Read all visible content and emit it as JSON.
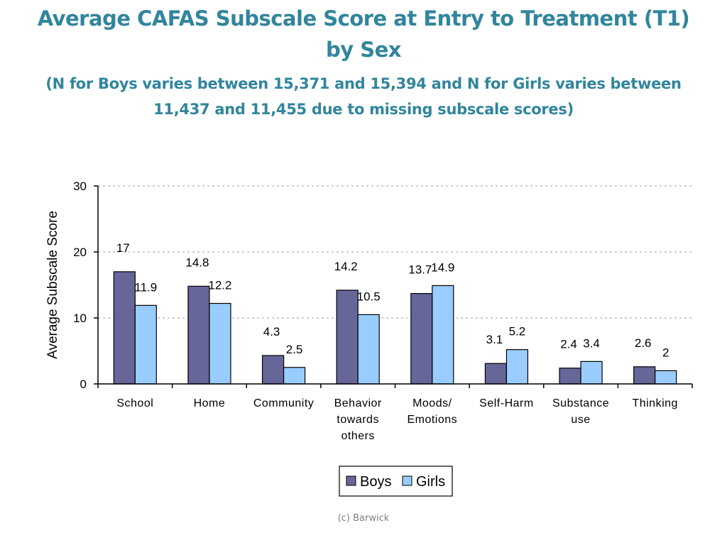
{
  "title": "Average CAFAS Subscale Score at Entry to Treatment (T1) by Sex",
  "subtitle": "(N for Boys varies between 15,371 and 15,394 and N for Girls varies between 11,437 and 11,455 due to missing subscale scores)",
  "footer": "(c) Barwick",
  "colors": {
    "title": "#31859c",
    "boys": "#666699",
    "girls": "#99ccff",
    "grid": "#bfbfbf"
  },
  "chart_data": {
    "type": "bar",
    "categories": [
      [
        "School"
      ],
      [
        "Home"
      ],
      [
        "Community"
      ],
      [
        "Behavior",
        "towards",
        "others"
      ],
      [
        "Moods/",
        "Emotions"
      ],
      [
        "Self-Harm"
      ],
      [
        "Substance",
        "use"
      ],
      [
        "Thinking"
      ]
    ],
    "series": [
      {
        "name": "Boys",
        "values": [
          17,
          14.8,
          4.3,
          14.2,
          13.7,
          3.1,
          2.4,
          2.6
        ]
      },
      {
        "name": "Girls",
        "values": [
          11.9,
          12.2,
          2.5,
          10.5,
          14.9,
          5.2,
          3.4,
          2
        ]
      }
    ],
    "xlabel": "",
    "ylabel": "Average Subscale Score",
    "ylim": [
      0,
      30
    ],
    "yticks": [
      0,
      10,
      20,
      30
    ],
    "grid": true,
    "legend": "bottom-center"
  }
}
